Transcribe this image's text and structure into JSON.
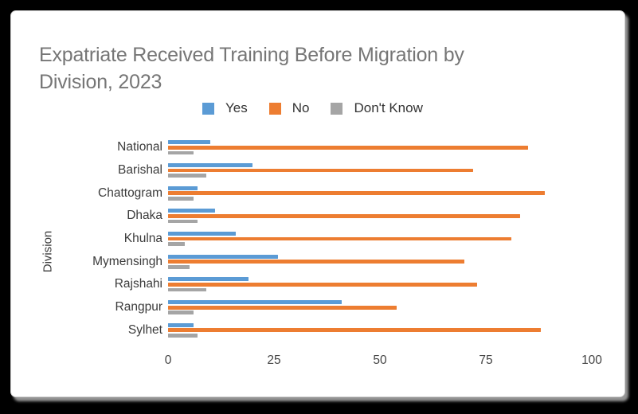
{
  "page": {
    "background_color": "#000000",
    "card_background": "#ffffff"
  },
  "title": {
    "line1": "Expatriate Received Training Before Migration by",
    "line2": "Division, 2023",
    "color": "#767676"
  },
  "legend": {
    "items": [
      {
        "label": "Yes",
        "color": "#5B9BD5"
      },
      {
        "label": "No",
        "color": "#ED7D31"
      },
      {
        "label": "Don't Know",
        "color": "#A5A5A5"
      }
    ]
  },
  "y_axis": {
    "title": "Division"
  },
  "chart_data": {
    "type": "bar",
    "orientation": "horizontal",
    "title": "Expatriate Received Training Before Migration by Division, 2023",
    "ylabel": "Division",
    "xlabel": "",
    "categories": [
      "National",
      "Barishal",
      "Chattogram",
      "Dhaka",
      "Khulna",
      "Mymensingh",
      "Rajshahi",
      "Rangpur",
      "Sylhet"
    ],
    "series": [
      {
        "name": "Yes",
        "color": "#5B9BD5",
        "values": [
          10,
          20,
          7,
          11,
          16,
          26,
          19,
          41,
          6
        ]
      },
      {
        "name": "No",
        "color": "#ED7D31",
        "values": [
          85,
          72,
          89,
          83,
          81,
          70,
          73,
          54,
          88
        ]
      },
      {
        "name": "Don't Know",
        "color": "#A5A5A5",
        "values": [
          6,
          9,
          6,
          7,
          4,
          5,
          9,
          6,
          7
        ]
      }
    ],
    "xlim": [
      0,
      100
    ],
    "x_ticks": [
      0,
      25,
      50,
      75,
      100
    ],
    "grid": false,
    "legend_position": "top"
  }
}
